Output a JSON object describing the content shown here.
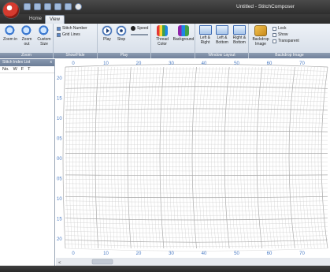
{
  "window": {
    "title": "Untitled - StitchComposer"
  },
  "quick_access": [
    "new-icon",
    "open-icon",
    "save-icon",
    "undo-icon",
    "redo-icon",
    "settings-icon"
  ],
  "tabs": [
    {
      "label": "Home",
      "active": false
    },
    {
      "label": "View",
      "active": true
    }
  ],
  "ribbon": {
    "zoom": {
      "label": "Zoom",
      "zoom_in": "Zoom in",
      "zoom_out": "Zoom out",
      "custom_size": "Custom Size"
    },
    "show_hide": {
      "label": "Show/Hide",
      "stitch_number": {
        "label": "Stitch Number",
        "checked": true
      },
      "grid_lines": {
        "label": "Grid Lines",
        "checked": true
      }
    },
    "play": {
      "label": "Play",
      "play": "Play",
      "stop": "Stop",
      "speed": "Speed"
    },
    "colors": {
      "thread_color": "Thread Color",
      "background": "Background"
    },
    "window_layout": {
      "label": "Window Layout",
      "left_right": "Left & Right",
      "left_bottom": "Left & Bottom",
      "right_bottom": "Right & Bottom"
    },
    "backdrop_image": {
      "label": "Backdrop Image",
      "backdrop_image": "Backdrop Image",
      "lock": {
        "label": "Lock",
        "checked": false
      },
      "show": {
        "label": "Show",
        "checked": false
      },
      "transparent": {
        "label": "Transparent",
        "checked": false
      }
    }
  },
  "side_panel": {
    "title": "Stitch Index List",
    "close": "x",
    "columns": [
      "No.",
      "W",
      "F",
      "T"
    ]
  },
  "grid": {
    "x_ticks": [
      "0",
      "10",
      "20",
      "30",
      "40",
      "50",
      "60",
      "70"
    ],
    "y_ticks": [
      "20",
      "15",
      "10",
      "05",
      "00",
      "05",
      "10",
      "15",
      "20"
    ],
    "scroll_left": "<"
  },
  "colors": {
    "accent": "#3d6bb3",
    "grid_line": "#c9c9c9",
    "tick_label": "#4a7bc4"
  }
}
